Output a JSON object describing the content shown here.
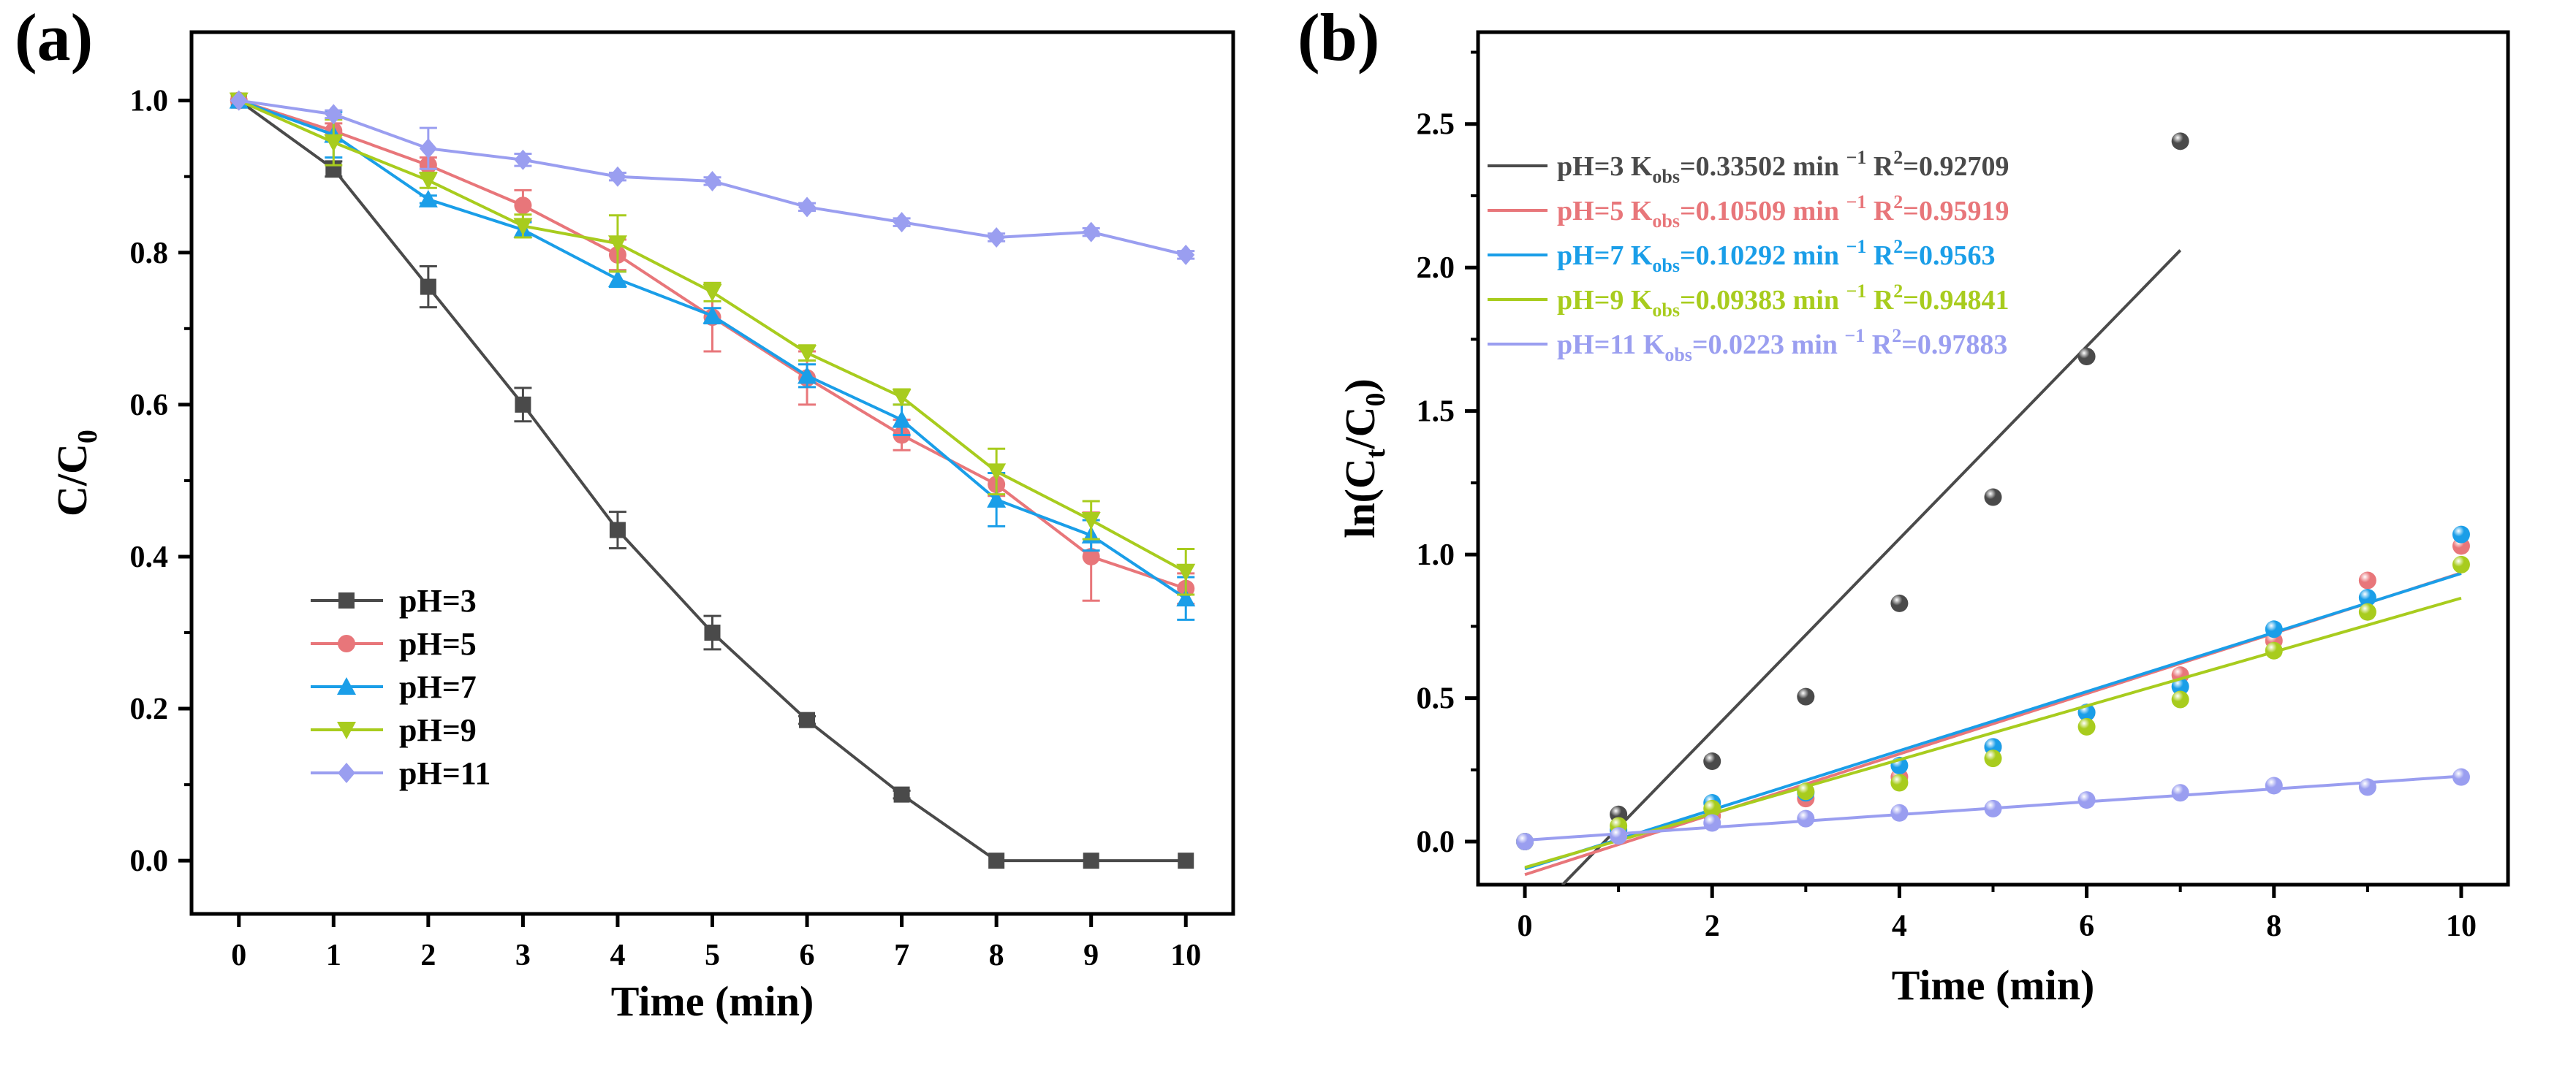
{
  "chart_data": [
    {
      "panel_label": "(a)",
      "type": "line",
      "xlabel": "Time (min)",
      "ylabel_parts": [
        "C/C",
        "0"
      ],
      "xlim": [
        -0.5,
        10.5
      ],
      "ylim": [
        -0.07,
        1.09
      ],
      "xticks": [
        0,
        1,
        2,
        3,
        4,
        5,
        6,
        7,
        8,
        9,
        10
      ],
      "xtick_labels": [
        "0",
        "1",
        "2",
        "3",
        "4",
        "5",
        "6",
        "7",
        "8",
        "9",
        "10"
      ],
      "yticks": [
        0,
        0.2,
        0.4,
        0.6,
        0.8,
        1.0
      ],
      "ytick_labels": [
        "0.0",
        "0.2",
        "0.4",
        "0.6",
        "0.8",
        "1.0"
      ],
      "legend_position": "bottom-left",
      "x": [
        0,
        1,
        2,
        3,
        4,
        5,
        6,
        7,
        8,
        9,
        10
      ],
      "series": [
        {
          "name": "pH=3",
          "color": "#4a4a4a",
          "marker": "square",
          "values": [
            1,
            0.91,
            0.755,
            0.6,
            0.435,
            0.3,
            0.185,
            0.087,
            0,
            0,
            0
          ],
          "errors": [
            0,
            0.01,
            0.027,
            0.022,
            0.024,
            0.022,
            0.005,
            0.005,
            0,
            0,
            0
          ]
        },
        {
          "name": "pH=5",
          "color": "#e8767a",
          "marker": "circle",
          "values": [
            1,
            0.96,
            0.915,
            0.862,
            0.797,
            0.715,
            0.635,
            0.56,
            0.495,
            0.4,
            0.358
          ],
          "errors": [
            0,
            0.01,
            0.01,
            0.02,
            0.02,
            0.045,
            0.035,
            0.02,
            0.015,
            0.058,
            0.02
          ]
        },
        {
          "name": "pH=7",
          "color": "#1a9ee8",
          "marker": "triangle-up",
          "values": [
            1,
            0.955,
            0.87,
            0.83,
            0.765,
            0.717,
            0.638,
            0.58,
            0.475,
            0.428,
            0.345
          ],
          "errors": [
            0,
            0.03,
            0.005,
            0.01,
            0.01,
            0.01,
            0.015,
            0.02,
            0.035,
            0.02,
            0.028
          ]
        },
        {
          "name": "pH=9",
          "color": "#a8cc1e",
          "marker": "triangle-down",
          "values": [
            1,
            0.945,
            0.895,
            0.835,
            0.812,
            0.748,
            0.668,
            0.61,
            0.512,
            0.448,
            0.38
          ],
          "errors": [
            0,
            0.03,
            0.01,
            0.015,
            0.037,
            0.012,
            0.01,
            0.01,
            0.03,
            0.025,
            0.03
          ]
        },
        {
          "name": "pH=11",
          "color": "#9a9ef0",
          "marker": "diamond",
          "values": [
            1,
            0.982,
            0.937,
            0.922,
            0.9,
            0.894,
            0.86,
            0.84,
            0.82,
            0.827,
            0.797
          ],
          "errors": [
            0,
            0.005,
            0.027,
            0.008,
            0.005,
            0.005,
            0.005,
            0.005,
            0.005,
            0.005,
            0.005
          ]
        }
      ]
    },
    {
      "panel_label": "(b)",
      "type": "scatter",
      "xlabel": "Time (min)",
      "ylabel_parts": [
        "ln(C",
        "t",
        "/C",
        "0",
        ")"
      ],
      "xlim": [
        -0.5,
        10.5
      ],
      "ylim": [
        -0.15,
        2.82
      ],
      "xticks": [
        0,
        2,
        4,
        6,
        8,
        10
      ],
      "xtick_labels": [
        "0",
        "2",
        "4",
        "6",
        "8",
        "10"
      ],
      "yticks": [
        0,
        0.5,
        1.0,
        1.5,
        2.0,
        2.5
      ],
      "ytick_labels": [
        "0.0",
        "0.5",
        "1.0",
        "1.5",
        "2.0",
        "2.5"
      ],
      "legend_position": "top-left",
      "legend_parts": {
        "k": "K",
        "k_sub": "obs",
        "unit": "min",
        "unit_sup": "−1",
        "r": "R",
        "r_sup": "2"
      },
      "series": [
        {
          "name": "pH=3",
          "color": "#4a4a4a",
          "k_obs": "0.33502",
          "r2": "0.92709",
          "slope": 0.33502,
          "intercept": -0.285,
          "fit_range": [
            0.4,
            7
          ],
          "x": [
            0,
            1,
            2,
            3,
            4,
            5,
            6,
            7
          ],
          "values": [
            0,
            0.095,
            0.28,
            0.505,
            0.83,
            1.2,
            1.69,
            2.44
          ]
        },
        {
          "name": "pH=5",
          "color": "#e8767a",
          "k_obs": "0.10509",
          "r2": "0.95919",
          "slope": 0.10509,
          "intercept": -0.115,
          "fit_range": [
            0,
            10
          ],
          "x": [
            0,
            1,
            2,
            3,
            4,
            5,
            6,
            7,
            8,
            9,
            10
          ],
          "values": [
            0,
            0.04,
            0.09,
            0.15,
            0.225,
            0.33,
            0.45,
            0.58,
            0.7,
            0.91,
            1.03
          ]
        },
        {
          "name": "pH=7",
          "color": "#1a9ee8",
          "k_obs": "0.10292",
          "r2": "0.9563",
          "slope": 0.10292,
          "intercept": -0.095,
          "fit_range": [
            0,
            10
          ],
          "x": [
            0,
            1,
            2,
            3,
            4,
            5,
            6,
            7,
            8,
            9,
            10
          ],
          "values": [
            0,
            0.04,
            0.135,
            0.17,
            0.265,
            0.33,
            0.45,
            0.54,
            0.74,
            0.85,
            1.07
          ]
        },
        {
          "name": "pH=9",
          "color": "#a8cc1e",
          "k_obs": "0.09383",
          "r2": "0.94841",
          "slope": 0.09383,
          "intercept": -0.09,
          "fit_range": [
            0,
            10
          ],
          "x": [
            0,
            1,
            2,
            3,
            4,
            5,
            6,
            7,
            8,
            9,
            10
          ],
          "values": [
            0,
            0.055,
            0.115,
            0.175,
            0.205,
            0.29,
            0.4,
            0.495,
            0.665,
            0.8,
            0.965
          ]
        },
        {
          "name": "pH=11",
          "color": "#9a9ef0",
          "k_obs": "0.0223",
          "r2": "0.97883",
          "slope": 0.0223,
          "intercept": 0.005,
          "fit_range": [
            0,
            10
          ],
          "x": [
            0,
            1,
            2,
            3,
            4,
            5,
            6,
            7,
            8,
            9,
            10
          ],
          "values": [
            0,
            0.02,
            0.065,
            0.08,
            0.1,
            0.115,
            0.145,
            0.17,
            0.195,
            0.19,
            0.225
          ]
        }
      ]
    }
  ]
}
